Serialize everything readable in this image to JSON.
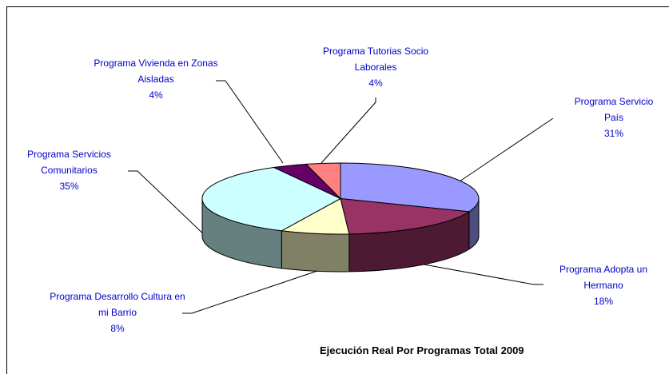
{
  "chart_data": {
    "type": "pie3d",
    "title": "Ejecución Real Por Programas Total 2009",
    "categories": [
      "Programa Servicio País",
      "Programa Adopta un Hermano",
      "Programa Desarrollo Cultura en mi Barrio",
      "Programa Servicios Comunitarios",
      "Programa Vivienda en Zonas Aisladas",
      "Programa Tutorias Socio Laborales"
    ],
    "values": [
      31,
      18,
      8,
      35,
      4,
      4
    ],
    "value_labels": [
      "31%",
      "18%",
      "8%",
      "35%",
      "4%",
      "4%"
    ],
    "colors": [
      "#9999ff",
      "#993366",
      "#ffffcc",
      "#ccffff",
      "#660066",
      "#ff8080"
    ]
  }
}
